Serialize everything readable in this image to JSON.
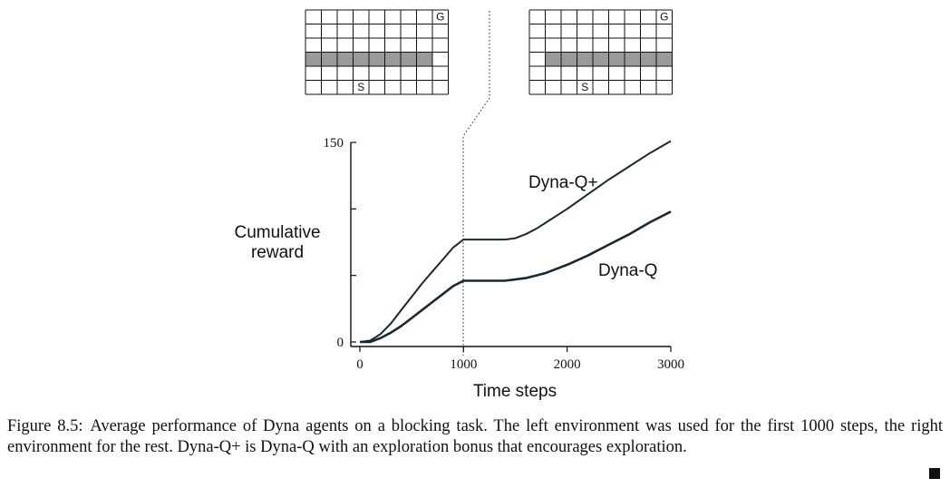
{
  "caption": {
    "label": "Figure 8.5:",
    "text": "Average performance of Dyna agents on a blocking task. The left environment was used for the first 1000 steps, the right environment for the rest. Dyna-Q+ is Dyna-Q with an exploration bonus that encourages exploration."
  },
  "environments": {
    "left": {
      "cols": 9,
      "rows": 6,
      "goal": {
        "label": "G",
        "row": 0,
        "col": 8
      },
      "start": {
        "label": "S",
        "row": 5,
        "col": 3
      },
      "blocked_row": 3,
      "blocked_cols": [
        0,
        7
      ]
    },
    "right": {
      "cols": 9,
      "rows": 6,
      "goal": {
        "label": "G",
        "row": 0,
        "col": 8
      },
      "start": {
        "label": "S",
        "row": 5,
        "col": 3
      },
      "blocked_row": 3,
      "blocked_cols": [
        1,
        8
      ]
    }
  },
  "chart_data": {
    "type": "line",
    "title": "",
    "xlabel": "Time steps",
    "ylabel": "Cumulative\nreward",
    "xlim": [
      0,
      3000
    ],
    "ylim": [
      0,
      150
    ],
    "xticks": [
      0,
      1000,
      2000,
      3000
    ],
    "xtick_labels": [
      "0",
      "1000",
      "2000",
      "3000"
    ],
    "yticks": [
      0,
      50,
      100,
      150
    ],
    "ytick_labels": [
      "0",
      "",
      "",
      "150"
    ],
    "switch_step": 1000,
    "series": [
      {
        "name": "Dyna-Q+",
        "x": [
          0,
          100,
          200,
          300,
          400,
          500,
          600,
          700,
          800,
          900,
          1000,
          1100,
          1200,
          1300,
          1400,
          1500,
          1600,
          1700,
          1800,
          1900,
          2000,
          2200,
          2400,
          2600,
          2800,
          3000
        ],
        "values": [
          0,
          1,
          6,
          14,
          24,
          34,
          44,
          53,
          62,
          71,
          77,
          77,
          77,
          77,
          77,
          78,
          81,
          85,
          90,
          95,
          100,
          111,
          122,
          132,
          142,
          151
        ]
      },
      {
        "name": "Dyna-Q",
        "x": [
          0,
          100,
          200,
          300,
          400,
          500,
          600,
          700,
          800,
          900,
          1000,
          1100,
          1200,
          1300,
          1400,
          1500,
          1600,
          1700,
          1800,
          1900,
          2000,
          2200,
          2400,
          2600,
          2800,
          3000
        ],
        "values": [
          0,
          0,
          3,
          7,
          12,
          18,
          24,
          30,
          36,
          42,
          46,
          46,
          46,
          46,
          46,
          47,
          48,
          50,
          52,
          55,
          58,
          65,
          73,
          81,
          90,
          98
        ]
      }
    ],
    "series_labels": [
      "Dyna-Q+",
      "Dyna-Q"
    ]
  }
}
